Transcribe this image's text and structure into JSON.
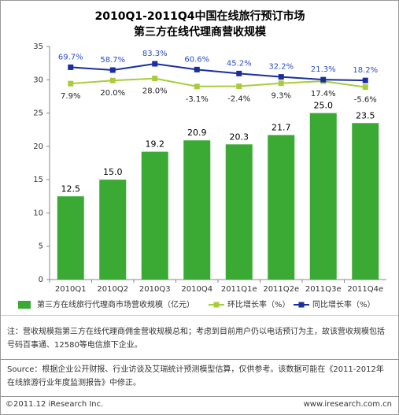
{
  "chart_data": {
    "type": "bar",
    "title": "2010Q1-2011Q4中国在线旅行预订市场",
    "subtitle": "第三方在线代理商营收规模",
    "categories": [
      "2010Q1",
      "2010Q2",
      "2010Q3",
      "2010Q4",
      "2011Q1e",
      "2011Q2e",
      "2011Q3e",
      "2011Q4e"
    ],
    "ylim": [
      0,
      35
    ],
    "yticks": [
      0,
      5,
      10,
      15,
      20,
      25,
      30,
      35
    ],
    "y2lim": [
      -760,
      151
    ],
    "y3lim": [
      -752,
      152
    ],
    "series": [
      {
        "name": "第三方在线旅行代理商市场营收规模（亿元）",
        "color": "#3aaa35",
        "values": [
          12.5,
          15,
          19.2,
          20.9,
          20.3,
          21.7,
          25,
          23.5
        ],
        "value_labels": [
          "12.5",
          "15.0",
          "19.2",
          "20.9",
          "20.3",
          "21.7",
          "25.0",
          "23.5"
        ]
      },
      {
        "name": "环比增长率（%）",
        "color": "#a8cc3c",
        "axis": "y3",
        "values": [
          7.9,
          20,
          28,
          -3.1,
          -2.4,
          9.3,
          17.4,
          -5.6
        ],
        "value_labels": [
          "7.9%",
          "20.0%",
          "28.0%",
          "-3.1%",
          "-2.4%",
          "9.3%",
          "17.4%",
          "-5.6%"
        ]
      },
      {
        "name": "同比增长率（%）",
        "color": "#1a2f9e",
        "axis": "y2",
        "values": [
          69.7,
          58.7,
          83.3,
          60.6,
          45.2,
          32.2,
          21.3,
          18.2
        ],
        "value_labels": [
          "69.7%",
          "58.7%",
          "83.3%",
          "60.6%",
          "45.2%",
          "32.2%",
          "21.3%",
          "18.2%"
        ]
      }
    ]
  },
  "note": "注：营收规模指第三方在线代理商佣金营收规模总和；考虑到目前用户仍以电话预订为主，故该营收规模包括号码百事通、12580等电信旅下企业。",
  "source": "Source：根据企业公开财报、行业访谈及艾瑞统计预测模型估算，仅供参考。该数据可能在《2011-2012年在线旅游行业年度监测报告》中修正。",
  "footer": {
    "copyright": "©2011.12 iResearch Inc.",
    "website": "www.iresearch.com.cn"
  }
}
